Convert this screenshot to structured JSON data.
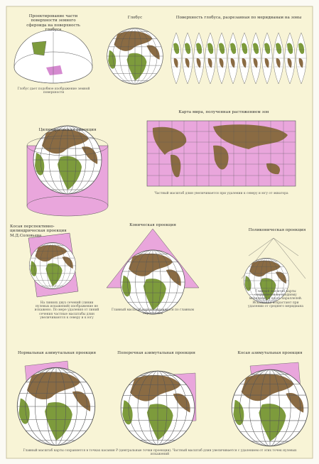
{
  "panels": [
    {
      "title": "Проектирование части поверхности земного сфероида на поверхность глобуса",
      "caption": "Глобус дает подобное изображение земной поверхности"
    },
    {
      "title": "Глобус"
    },
    {
      "title": "Поверхность глобуса, разрезанная по меридианам на зоны"
    },
    {
      "title": "Цилиндрическая проекция"
    },
    {
      "title": "Карта мира, полученная растяжением зон",
      "caption": "Частный масштаб длин увеличивается при удалении к северу и югу от экватора"
    },
    {
      "title": "Косая перспективно-цилиндрическая проекция М.Д.Соловьева",
      "caption": "На линиях двух сечений (линии нулевых искажений) изображение не искажено. По мере удаления от линий сечения частные масштабы длин увеличиваются к северу и к югу"
    },
    {
      "title": "Коническая проекция",
      "caption": "Главный масштаб карты сохраняется по главным параллелям"
    },
    {
      "title": "Поликоническая проекция",
      "caption": "Главный масштаб карты сохраняется по среднему меридиану и вдоль параллелей. Искажения возрастают при удалении от среднего меридиана"
    },
    {
      "title": "Нормальная азимутальная проекция"
    },
    {
      "title": "Поперечная азимутальная проекция"
    },
    {
      "title": "Косая азимутальная проекция"
    }
  ],
  "footer": "Главный масштаб карты сохраняется в точках касания Р (центральные точки проекции). Частный масштаб длин увеличивается с удалением от этих точек нулевых искажений"
}
